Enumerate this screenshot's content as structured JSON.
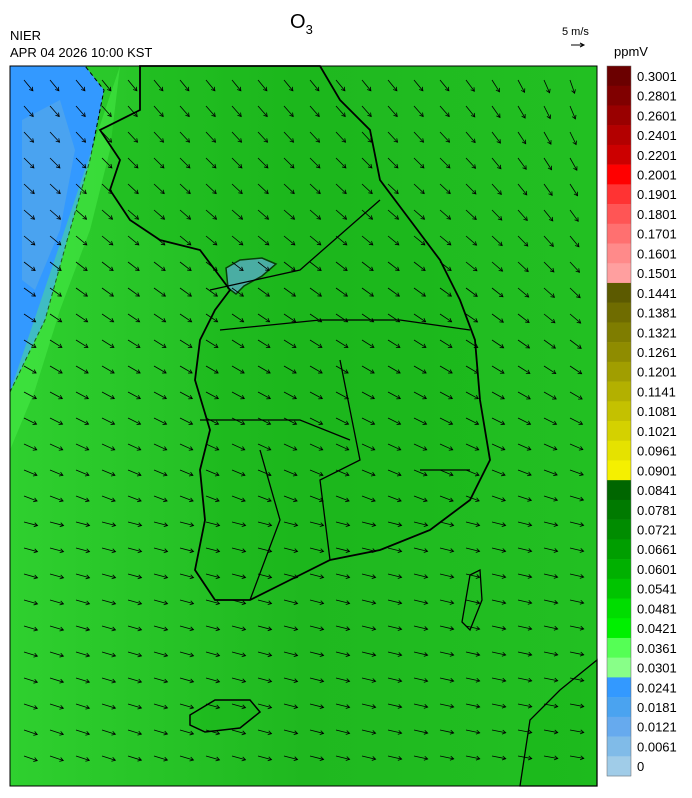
{
  "header": {
    "agency": "NIER",
    "datetime": "APR 04 2026 10:00 KST",
    "title": {
      "main": "O",
      "subscript": "3"
    }
  },
  "wind_reference": {
    "label": "5 m/s"
  },
  "legend": {
    "unit": "ppmV",
    "entries": [
      {
        "label": "0.3001",
        "color": "#6b0000"
      },
      {
        "label": "0.2801",
        "color": "#800000"
      },
      {
        "label": "0.2601",
        "color": "#990000"
      },
      {
        "label": "0.2401",
        "color": "#b30000"
      },
      {
        "label": "0.2201",
        "color": "#cc0000"
      },
      {
        "label": "0.2001",
        "color": "#ff0000"
      },
      {
        "label": "0.1901",
        "color": "#ff3333"
      },
      {
        "label": "0.1801",
        "color": "#ff5555"
      },
      {
        "label": "0.1701",
        "color": "#ff7070"
      },
      {
        "label": "0.1601",
        "color": "#ff8a8a"
      },
      {
        "label": "0.1501",
        "color": "#ff9f9f"
      },
      {
        "label": "0.1441",
        "color": "#5c5a00"
      },
      {
        "label": "0.1381",
        "color": "#6f6c00"
      },
      {
        "label": "0.1321",
        "color": "#7f7d00"
      },
      {
        "label": "0.1261",
        "color": "#8f8c00"
      },
      {
        "label": "0.1201",
        "color": "#a19e00"
      },
      {
        "label": "0.1141",
        "color": "#b3b000"
      },
      {
        "label": "0.1081",
        "color": "#c4c100"
      },
      {
        "label": "0.1021",
        "color": "#d4d100"
      },
      {
        "label": "0.0961",
        "color": "#e5e200"
      },
      {
        "label": "0.0901",
        "color": "#f5f000"
      },
      {
        "label": "0.0841",
        "color": "#006600"
      },
      {
        "label": "0.0781",
        "color": "#007a00"
      },
      {
        "label": "0.0721",
        "color": "#008c00"
      },
      {
        "label": "0.0661",
        "color": "#009e00"
      },
      {
        "label": "0.0601",
        "color": "#00b000"
      },
      {
        "label": "0.0541",
        "color": "#00c400"
      },
      {
        "label": "0.0481",
        "color": "#00dd00"
      },
      {
        "label": "0.0421",
        "color": "#00f000"
      },
      {
        "label": "0.0361",
        "color": "#55ff55"
      },
      {
        "label": "0.0301",
        "color": "#88ff88"
      },
      {
        "label": "0.0241",
        "color": "#3399ff"
      },
      {
        "label": "0.0181",
        "color": "#4aa3f0"
      },
      {
        "label": "0.0121",
        "color": "#66aaee"
      },
      {
        "label": "0.0061",
        "color": "#80bbe8"
      },
      {
        "label": "0",
        "color": "#a0cce8"
      }
    ]
  }
}
